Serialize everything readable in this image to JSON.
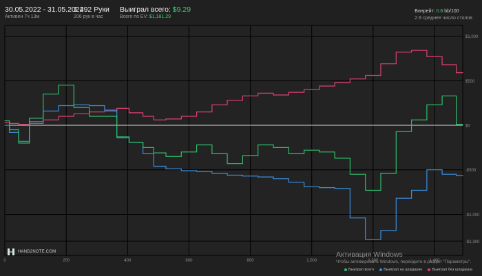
{
  "header": {
    "date_range": "30.05.2022 - 31.05.2022",
    "active": "Активен 7ч 13м",
    "hands": "1 492 Руки",
    "hands_per_hour": "206 рук в час",
    "won_label": "Выиграл всего:",
    "won_value": "$9.29",
    "ev_label": "Всего по EV:",
    "ev_value": "$1,181.29",
    "winrate_label": "Винрейт:",
    "winrate_value": "0.8",
    "winrate_suffix": "bb/100",
    "avg_tables": "2.9 среднее число столов"
  },
  "logo": {
    "text": "HAND2NOTE.COM"
  },
  "watermark": {
    "title": "Активация Windows",
    "subtitle": "Чтобы активировать Windows, перейдите в раздел \"Параметры\"."
  },
  "colors": {
    "total": "#2fbf6a",
    "showdown": "#3d8fe0",
    "non_showdown": "#e0406f",
    "grid": "#000000",
    "zero": "#d8d8d8"
  },
  "chart_data": {
    "type": "line",
    "title": "",
    "xlabel": "",
    "ylabel": "",
    "xlim": [
      0,
      1492
    ],
    "ylim": [
      -1460,
      1120
    ],
    "x_ticks": [
      0,
      200,
      400,
      600,
      800,
      1000,
      1200,
      1400
    ],
    "x_tick_labels": [
      "0",
      "200",
      "400",
      "600",
      "800",
      "1,000",
      "1 200",
      "1 400"
    ],
    "y_ticks": [
      1000,
      500,
      0,
      -500,
      -1000,
      -1300
    ],
    "y_tick_labels": [
      "$1,000",
      "$500",
      "$0",
      "-$500",
      "-$1,000",
      "-$1,300"
    ],
    "grid": true,
    "legend_position": "bottom-right",
    "x": [
      0,
      30,
      60,
      100,
      150,
      200,
      250,
      300,
      350,
      380,
      430,
      470,
      500,
      550,
      600,
      650,
      700,
      750,
      800,
      850,
      900,
      950,
      1000,
      1050,
      1100,
      1150,
      1200,
      1250,
      1300,
      1350,
      1400,
      1450,
      1492
    ],
    "series": [
      {
        "name": "Выиграл всего",
        "values": [
          50,
          -50,
          -200,
          80,
          350,
          450,
          200,
          100,
          100,
          -130,
          -190,
          -250,
          -310,
          -350,
          -300,
          -220,
          -320,
          -430,
          -340,
          -220,
          -250,
          -320,
          -280,
          -300,
          -370,
          -550,
          -730,
          -540,
          -70,
          60,
          230,
          330,
          9
        ]
      },
      {
        "name": "Выиграл на шоудауне",
        "values": [
          0,
          -80,
          -180,
          40,
          160,
          220,
          230,
          220,
          170,
          -140,
          -190,
          -320,
          -460,
          -490,
          -510,
          -520,
          -540,
          -560,
          -570,
          -580,
          -600,
          -640,
          -690,
          -700,
          -710,
          -1040,
          -1280,
          -1180,
          -820,
          -730,
          -500,
          -550,
          -565
        ]
      },
      {
        "name": "Выиграл без шоудауна",
        "values": [
          30,
          20,
          10,
          20,
          60,
          100,
          130,
          150,
          160,
          190,
          140,
          100,
          60,
          70,
          100,
          150,
          230,
          280,
          330,
          360,
          340,
          370,
          400,
          440,
          480,
          520,
          560,
          690,
          820,
          840,
          770,
          680,
          590
        ]
      }
    ]
  }
}
